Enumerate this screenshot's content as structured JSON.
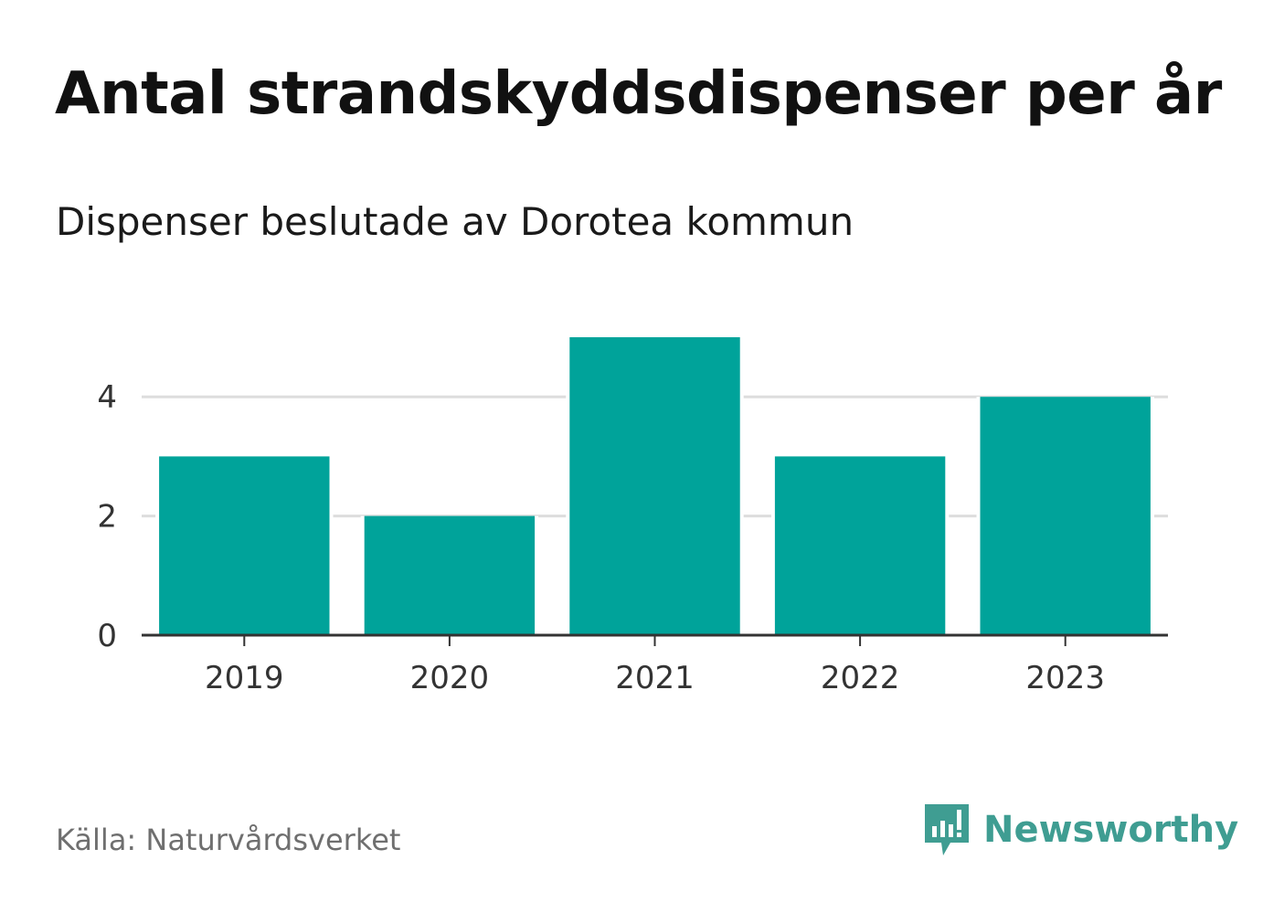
{
  "header": {
    "title": "Antal strandskyddsdispenser per år",
    "subtitle": "Dispenser beslutade av Dorotea kommun"
  },
  "footer": {
    "source": "Källa: Naturvårdsverket",
    "brand": "Newsworthy"
  },
  "colors": {
    "bar": "#00a39a",
    "brand": "#3f9d92",
    "grid": "#dddddd",
    "axis": "#333333"
  },
  "chart_data": {
    "type": "bar",
    "title": "Antal strandskyddsdispenser per år",
    "subtitle": "Dispenser beslutade av Dorotea kommun",
    "categories": [
      "2019",
      "2020",
      "2021",
      "2022",
      "2023"
    ],
    "values": [
      3,
      2,
      5,
      3,
      4
    ],
    "yticks": [
      0,
      2,
      4
    ],
    "ylim": [
      0,
      5
    ],
    "xlabel": "",
    "ylabel": "",
    "grid": true
  }
}
